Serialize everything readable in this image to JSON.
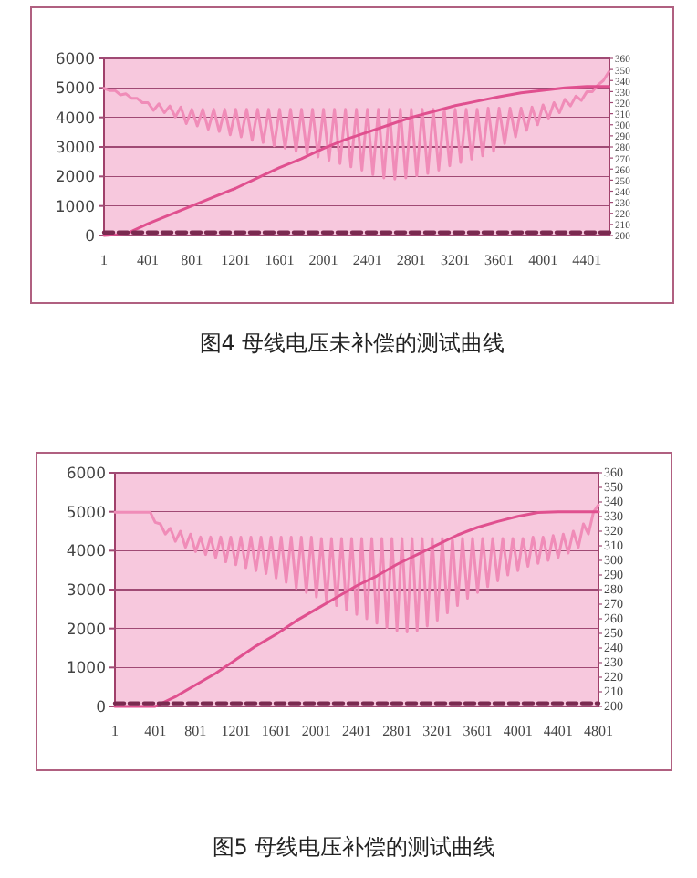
{
  "chart_data": [
    {
      "type": "line",
      "annotations": [
        "图4  母线电压未补偿的测试曲线"
      ],
      "xlim": [
        1,
        4606
      ],
      "xticks": [
        1,
        401,
        801,
        1201,
        1601,
        2001,
        2401,
        2801,
        3201,
        3601,
        4001,
        4401
      ],
      "ylim": [
        0,
        6000
      ],
      "yticks": [
        0,
        1000,
        2000,
        3000,
        4000,
        5000,
        6000
      ],
      "y2lim": [
        200,
        360
      ],
      "y2ticks": [
        200,
        210,
        220,
        230,
        240,
        250,
        260,
        270,
        280,
        290,
        300,
        310,
        320,
        330,
        340,
        350,
        360
      ],
      "grid": "y",
      "series": [
        {
          "color": "#f08cb8",
          "axis": "y2",
          "x": [
            1,
            51,
            101,
            151,
            201,
            251,
            301,
            351,
            401,
            451,
            501,
            551,
            601,
            651,
            701,
            751,
            801,
            851,
            901,
            951,
            1001,
            1051,
            1101,
            1151,
            1201,
            1251,
            1301,
            1351,
            1401,
            1451,
            1501,
            1551,
            1601,
            1651,
            1701,
            1751,
            1801,
            1851,
            1901,
            1951,
            2001,
            2051,
            2101,
            2151,
            2201,
            2251,
            2301,
            2351,
            2401,
            2451,
            2501,
            2551,
            2601,
            2651,
            2701,
            2751,
            2801,
            2851,
            2901,
            2951,
            3001,
            3051,
            3101,
            3151,
            3201,
            3251,
            3301,
            3351,
            3401,
            3451,
            3501,
            3551,
            3601,
            3651,
            3701,
            3751,
            3801,
            3851,
            3901,
            3951,
            4001,
            4051,
            4101,
            4151,
            4201,
            4251,
            4301,
            4351,
            4401,
            4451,
            4501,
            4551,
            4601
          ],
          "values": [
            333,
            331,
            331,
            327,
            328,
            324,
            324,
            320,
            320,
            313,
            319,
            311,
            317,
            307,
            316,
            301,
            314,
            299,
            314,
            296,
            314,
            294,
            314,
            291,
            314,
            289,
            314,
            286,
            314,
            284,
            314,
            281,
            314,
            279,
            314,
            276,
            314,
            274,
            314,
            271,
            314,
            268,
            314,
            265,
            314,
            262,
            314,
            259,
            314,
            255,
            314,
            252,
            314,
            251,
            314,
            252,
            314,
            254,
            314,
            256,
            314,
            259,
            314,
            263,
            314,
            266,
            314,
            269,
            314,
            272,
            315,
            276,
            315,
            283,
            315,
            289,
            315,
            295,
            316,
            300,
            318,
            306,
            320,
            311,
            323,
            317,
            326,
            322,
            330,
            330,
            336,
            340,
            348
          ]
        },
        {
          "color": "#e0508f",
          "x": [
            1,
            201,
            401,
            601,
            801,
            1001,
            1201,
            1401,
            1601,
            1801,
            2001,
            2201,
            2401,
            2601,
            2801,
            3001,
            3201,
            3401,
            3601,
            3801,
            4001,
            4201,
            4401,
            4601
          ],
          "values": [
            0,
            50,
            400,
            700,
            1000,
            1300,
            1600,
            1950,
            2300,
            2600,
            2950,
            3250,
            3500,
            3750,
            4000,
            4200,
            4400,
            4550,
            4700,
            4830,
            4920,
            5000,
            5050,
            5050
          ]
        },
        {
          "color": "#7a2a50",
          "line_style": "dashed",
          "x": [
            1,
            4606
          ],
          "values": [
            100,
            100
          ]
        }
      ]
    },
    {
      "type": "line",
      "annotations": [
        "图5  母线电压补偿的测试曲线"
      ],
      "xlim": [
        1,
        4801
      ],
      "xticks": [
        1,
        401,
        801,
        1201,
        1601,
        2001,
        2401,
        2801,
        3201,
        3601,
        4001,
        4401,
        4801
      ],
      "ylim": [
        0,
        6000
      ],
      "yticks": [
        0,
        1000,
        2000,
        3000,
        4000,
        5000,
        6000
      ],
      "y2lim": [
        200,
        360
      ],
      "y2ticks": [
        200,
        210,
        220,
        230,
        240,
        250,
        260,
        270,
        280,
        290,
        300,
        310,
        320,
        330,
        340,
        350,
        360
      ],
      "grid": "y",
      "series": [
        {
          "color": "#f08cb8",
          "axis": "y2",
          "x": [
            1,
            351,
            401,
            451,
            501,
            551,
            601,
            651,
            701,
            751,
            801,
            851,
            901,
            951,
            1001,
            1051,
            1101,
            1151,
            1201,
            1251,
            1301,
            1351,
            1401,
            1451,
            1501,
            1551,
            1601,
            1651,
            1701,
            1751,
            1801,
            1851,
            1901,
            1951,
            2001,
            2051,
            2101,
            2151,
            2201,
            2251,
            2301,
            2351,
            2401,
            2451,
            2501,
            2551,
            2601,
            2651,
            2701,
            2751,
            2801,
            2851,
            2901,
            2951,
            3001,
            3051,
            3101,
            3151,
            3201,
            3251,
            3301,
            3351,
            3401,
            3451,
            3501,
            3551,
            3601,
            3651,
            3701,
            3751,
            3801,
            3851,
            3901,
            3951,
            4001,
            4051,
            4101,
            4151,
            4201,
            4251,
            4301,
            4351,
            4401,
            4451,
            4501,
            4551,
            4601,
            4651,
            4701,
            4751,
            4801
          ],
          "values": [
            333,
            333,
            326,
            325,
            318,
            322,
            313,
            320,
            309,
            318,
            306,
            316,
            304,
            316,
            302,
            316,
            299,
            316,
            297,
            316,
            295,
            316,
            293,
            316,
            291,
            316,
            288,
            316,
            285,
            316,
            281,
            316,
            278,
            316,
            275,
            315,
            272,
            315,
            269,
            315,
            266,
            315,
            263,
            315,
            260,
            315,
            257,
            315,
            254,
            315,
            252,
            315,
            251,
            315,
            252,
            315,
            255,
            315,
            259,
            315,
            264,
            315,
            269,
            315,
            274,
            315,
            278,
            315,
            282,
            315,
            286,
            315,
            290,
            315,
            293,
            315,
            296,
            316,
            298,
            316,
            300,
            317,
            302,
            318,
            305,
            320,
            309,
            325,
            318,
            333,
            338
          ]
        },
        {
          "color": "#e0508f",
          "x": [
            1,
            401,
            601,
            801,
            1001,
            1201,
            1401,
            1601,
            1801,
            2001,
            2201,
            2401,
            2601,
            2801,
            3001,
            3201,
            3401,
            3601,
            3801,
            4001,
            4201,
            4401,
            4801
          ],
          "values": [
            0,
            0,
            250,
            550,
            850,
            1200,
            1550,
            1850,
            2200,
            2500,
            2800,
            3100,
            3350,
            3650,
            3900,
            4150,
            4400,
            4600,
            4750,
            4880,
            4980,
            5000,
            5000
          ]
        },
        {
          "color": "#7a2a50",
          "line_style": "dashed",
          "x": [
            1,
            4801
          ],
          "values": [
            80,
            80
          ]
        }
      ]
    }
  ]
}
